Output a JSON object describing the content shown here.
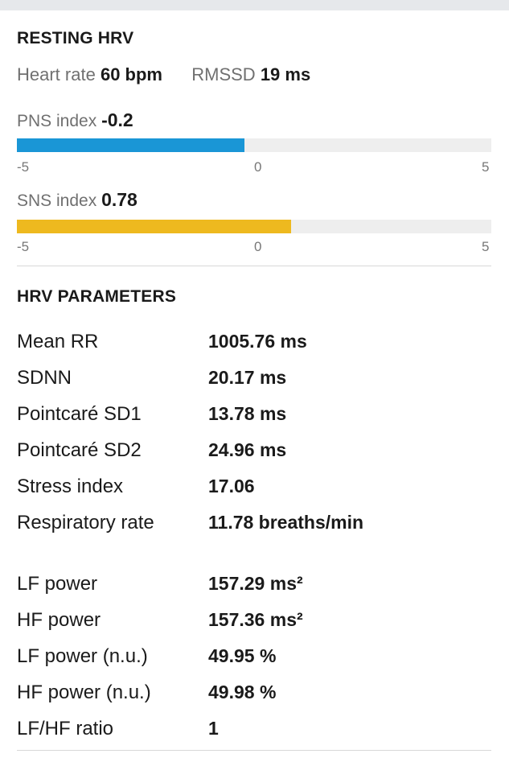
{
  "resting": {
    "title": "RESTING HRV",
    "heart_rate": {
      "label": "Heart rate",
      "value": "60 bpm"
    },
    "rmssd": {
      "label": "RMSSD",
      "value": "19 ms"
    },
    "pns": {
      "label": "PNS index",
      "value": "-0.2",
      "numeric": -0.2,
      "min": -5,
      "max": 5,
      "color": "#1a96d6",
      "ticks": [
        "-5",
        "0",
        "5"
      ]
    },
    "sns": {
      "label": "SNS index",
      "value": "0.78",
      "numeric": 0.78,
      "min": -5,
      "max": 5,
      "color": "#eeb91f",
      "ticks": [
        "-5",
        "0",
        "5"
      ]
    }
  },
  "parameters": {
    "title": "HRV PARAMETERS",
    "rows": [
      {
        "name": "Mean RR",
        "value": "1005.76 ms"
      },
      {
        "name": "SDNN",
        "value": "20.17 ms"
      },
      {
        "name": "Pointcaré SD1",
        "value": "13.78 ms"
      },
      {
        "name": "Pointcaré SD2",
        "value": "24.96 ms"
      },
      {
        "name": "Stress index",
        "value": "17.06"
      },
      {
        "name": "Respiratory rate",
        "value": "11.78 breaths/min"
      },
      {
        "name": "LF power",
        "value": "157.29 ms²"
      },
      {
        "name": "HF power",
        "value": "157.36 ms²"
      },
      {
        "name": "LF power (n.u.)",
        "value": "49.95 %"
      },
      {
        "name": "HF power (n.u.)",
        "value": "49.98 %"
      },
      {
        "name": "LF/HF ratio",
        "value": "1"
      }
    ]
  }
}
